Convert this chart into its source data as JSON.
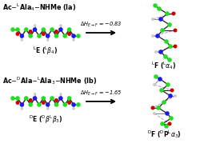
{
  "background_color": "#ffffff",
  "top_title": "Ac–ᴸAla₄–NHMe (Ia)",
  "bottom_title": "Ac–ᴰAla–ᴸAla₃–NHMe (Ib)",
  "top_arrow_text": "ΔHₑ→ₒ = −0.83",
  "bottom_arrow_text": "ΔHₑ→ₒ = −1.65",
  "color_c": "#22dd22",
  "color_n": "#1a1aee",
  "color_o": "#cc0000",
  "color_h": "#cccccc",
  "color_hbond": "#cc88cc"
}
